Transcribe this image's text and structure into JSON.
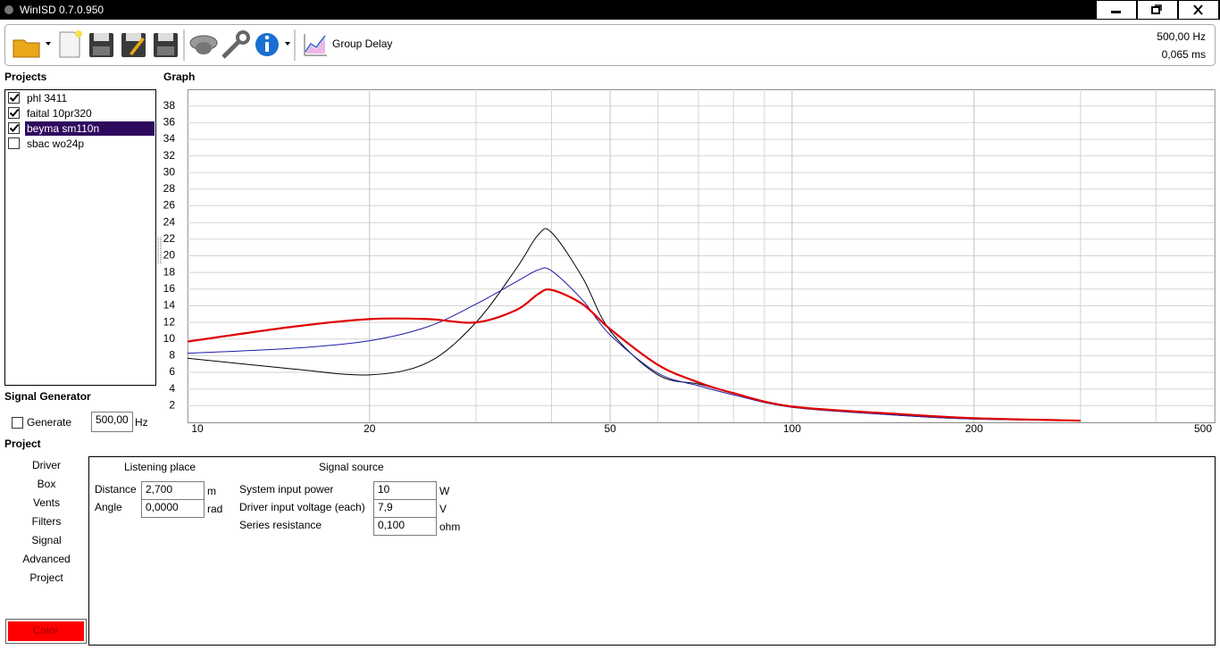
{
  "window": {
    "title": "WinISD 0.7.0.950"
  },
  "toolbar": {
    "button_label": "Group Delay",
    "cursor_frequency": "500,00 Hz",
    "cursor_value": "0,065 ms"
  },
  "projects": {
    "title": "Projects",
    "items": [
      {
        "label": "phl 3411",
        "checked": true,
        "selected": false
      },
      {
        "label": "faital 10pr320",
        "checked": true,
        "selected": false
      },
      {
        "label": "beyma sm110n",
        "checked": true,
        "selected": true
      },
      {
        "label": "sbac wo24p",
        "checked": false,
        "selected": false
      }
    ]
  },
  "chart_data": {
    "type": "line",
    "title": "Graph",
    "xscale": "log",
    "x": [
      10,
      15,
      20,
      25,
      30,
      35,
      38,
      40,
      45,
      50,
      60,
      70,
      80,
      100,
      150,
      200,
      300
    ],
    "xlim": [
      10,
      500
    ],
    "xticks": [
      10,
      20,
      50,
      100,
      200,
      500
    ],
    "xminor": [
      30,
      40,
      60,
      70,
      80,
      90,
      300,
      400
    ],
    "ylim": [
      0,
      40
    ],
    "yticks": [
      2,
      4,
      6,
      8,
      10,
      12,
      14,
      16,
      18,
      20,
      22,
      24,
      26,
      28,
      30,
      32,
      34,
      36,
      38
    ],
    "grid": true,
    "series": [
      {
        "color": "#000000",
        "values": [
          7.7,
          6.4,
          5.7,
          7.2,
          12,
          18.5,
          22.5,
          22.8,
          17.4,
          11,
          5.7,
          4.6,
          3.5,
          1.9,
          0.85,
          0.4,
          0.2
        ]
      },
      {
        "color": "#1c1ca8",
        "values": [
          8.3,
          8.9,
          9.8,
          11.5,
          14.2,
          16.9,
          18.3,
          18.2,
          14.7,
          10.5,
          5.9,
          4.4,
          3.3,
          1.8,
          0.85,
          0.4,
          0.2
        ]
      },
      {
        "color": "#e00000",
        "values": [
          9.7,
          11.5,
          12.4,
          12.4,
          12.0,
          13.5,
          15.4,
          15.9,
          14.2,
          11.2,
          6.9,
          4.8,
          3.5,
          1.9,
          1.0,
          0.5,
          0.2
        ]
      }
    ]
  },
  "signal_generator": {
    "title": "Signal Generator",
    "checkbox_label": "Generate",
    "checked": false,
    "frequency": "500,00",
    "unit": "Hz"
  },
  "project_panel": {
    "title": "Project",
    "tabs": [
      "Driver",
      "Box",
      "Vents",
      "Filters",
      "Signal",
      "Advanced",
      "Project"
    ],
    "color_button": "Color",
    "listening_place": {
      "title": "Listening place",
      "fields": [
        {
          "label": "Distance",
          "value": "2,700",
          "unit": "m"
        },
        {
          "label": "Angle",
          "value": "0,0000",
          "unit": "rad"
        }
      ]
    },
    "signal_source": {
      "title": "Signal source",
      "fields": [
        {
          "label": "System input power",
          "value": "10",
          "unit": "W"
        },
        {
          "label": "Driver input voltage (each)",
          "value": "7,9",
          "unit": "V"
        },
        {
          "label": "Series resistance",
          "value": "0,100",
          "unit": "ohm"
        }
      ]
    }
  }
}
